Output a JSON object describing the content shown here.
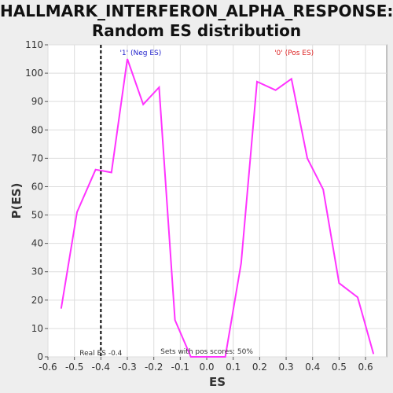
{
  "title_line1": "HALLMARK_INTERFERON_ALPHA_RESPONSE:",
  "title_line2": "Random ES distribution",
  "colors": {
    "line": "#ff33ff",
    "neg_label": "#2222cc",
    "pos_label": "#dd2222",
    "background": "#eeeeee",
    "plot_bg": "#ffffff",
    "real_es_line": "#000000"
  },
  "chart_data": {
    "type": "line",
    "title": "HALLMARK_INTERFERON_ALPHA_RESPONSE: Random ES distribution",
    "xlabel": "ES",
    "ylabel": "P(ES)",
    "xlim": [
      -0.6,
      0.68
    ],
    "ylim": [
      0,
      110
    ],
    "xticks": [
      -0.6,
      -0.5,
      -0.4,
      -0.3,
      -0.2,
      -0.1,
      0.0,
      0.1,
      0.2,
      0.3,
      0.4,
      0.5,
      0.6
    ],
    "xtick_labels": [
      "-0.6",
      "-0.5",
      "-0.4",
      "-0.3",
      "-0.2",
      "-0.1",
      "0.0",
      "0.1",
      "0.2",
      "0.3",
      "0.4",
      "0.5",
      "0.6"
    ],
    "yticks": [
      0,
      10,
      20,
      30,
      40,
      50,
      60,
      70,
      80,
      90,
      100,
      110
    ],
    "ytick_labels": [
      "0",
      "10",
      "20",
      "30",
      "40",
      "50",
      "60",
      "70",
      "80",
      "90",
      "100",
      "110"
    ],
    "grid": true,
    "legend": "none",
    "series": [
      {
        "x": [
          -0.55,
          -0.49,
          -0.42,
          -0.36,
          -0.3,
          -0.24,
          -0.18,
          -0.12,
          -0.06,
          0.0,
          0.07,
          0.13,
          0.19,
          0.26,
          0.32,
          0.38,
          0.44,
          0.5,
          0.57,
          0.63
        ],
        "y": [
          17,
          51,
          66,
          65,
          105,
          89,
          95,
          13,
          0,
          0,
          0,
          33,
          97,
          94,
          98,
          70,
          59,
          26,
          21,
          1
        ]
      }
    ],
    "real_es": -0.4,
    "annotations": {
      "neg_label": "'1' (Neg ES)",
      "pos_label": "'0' (Pos ES)",
      "real_es_label": "Real ES -0.4",
      "pos_scores_label": "Sets with pos scores: 50%"
    }
  }
}
